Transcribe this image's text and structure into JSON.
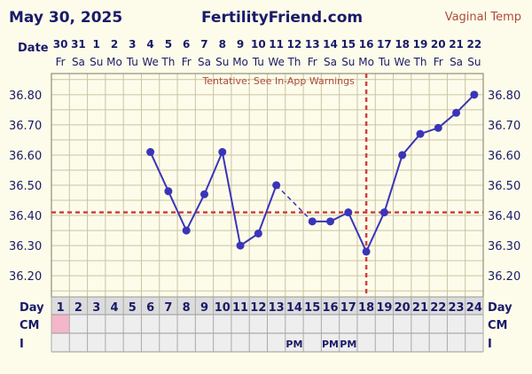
{
  "header": {
    "date": "May 30, 2025",
    "brand": "FertilityFriend.com",
    "chart_type": "Vaginal Temp"
  },
  "colors": {
    "background": "#fdfcea",
    "grid": "#c9c4a4",
    "plot_border": "#7a7860",
    "line": "#3a35b8",
    "marker": "#3a35b8",
    "coverline": "#d04040",
    "text": "#1a1a6a",
    "warning_text": "#b04a3a",
    "cm_first_cell": "#f4b6c8",
    "row_bg": "#eeeeee"
  },
  "labels": {
    "date_row": "Date",
    "day_row": "Day",
    "cm_row": "CM",
    "intercourse_row": "I",
    "warning": "Tentative: See In-App Warnings"
  },
  "chart_data": {
    "type": "line",
    "dates": [
      "30",
      "31",
      "1",
      "2",
      "3",
      "4",
      "5",
      "6",
      "7",
      "8",
      "9",
      "10",
      "11",
      "12",
      "13",
      "14",
      "15",
      "16",
      "17",
      "18",
      "19",
      "20",
      "21",
      "22"
    ],
    "weekdays": [
      "Fr",
      "Sa",
      "Su",
      "Mo",
      "Tu",
      "We",
      "Th",
      "Fr",
      "Sa",
      "Su",
      "Mo",
      "Tu",
      "We",
      "Th",
      "Fr",
      "Sa",
      "Su",
      "Mo",
      "Tu",
      "We",
      "Th",
      "Fr",
      "Sa",
      "Su"
    ],
    "days": [
      1,
      2,
      3,
      4,
      5,
      6,
      7,
      8,
      9,
      10,
      11,
      12,
      13,
      14,
      15,
      16,
      17,
      18,
      19,
      20,
      21,
      22,
      23,
      24
    ],
    "y_ticks": [
      "36.80",
      "36.70",
      "36.60",
      "36.50",
      "36.40",
      "36.30",
      "36.20"
    ],
    "ylim": [
      36.13,
      36.87
    ],
    "temps": [
      null,
      null,
      null,
      null,
      null,
      36.61,
      36.48,
      36.35,
      36.47,
      36.61,
      36.3,
      36.34,
      36.5,
      null,
      36.38,
      36.38,
      36.41,
      36.28,
      36.41,
      36.6,
      36.67,
      36.69,
      36.74,
      36.8
    ],
    "dashed_connection": [
      13,
      15
    ],
    "coverline": 36.41,
    "ovulation_day": 18,
    "cm_highlight_days": [
      1
    ],
    "intercourse": [
      {
        "day": 14,
        "label": "PM"
      },
      {
        "day": 16,
        "label": "PM"
      },
      {
        "day": 17,
        "label": "PM"
      }
    ],
    "grid": true
  }
}
